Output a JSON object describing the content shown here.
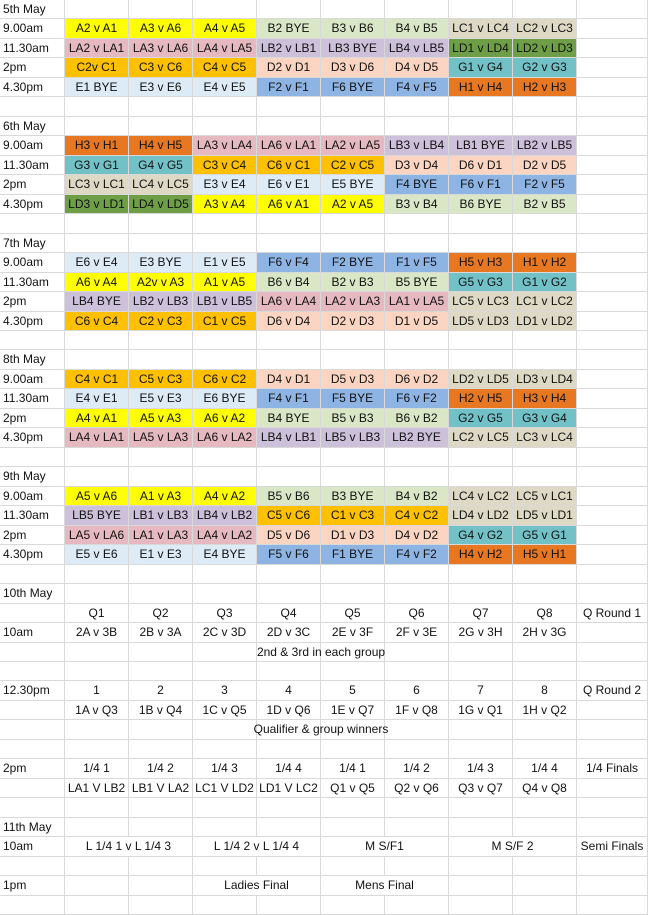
{
  "colors": {
    "A": "#FFFF00",
    "B": "#D9E7C7",
    "C": "#FFC000",
    "D": "#FBD5C1",
    "E": "#DDEBF7",
    "F": "#8EB4E3",
    "G": "#72C1C7",
    "H": "#E87722",
    "LA": "#E6B9C0",
    "LB": "#CCC0DA",
    "LC": "#DDD9C4",
    "LD": "#6E9F46"
  },
  "days": [
    {
      "label": "5th May",
      "rows": [
        {
          "time": "9.00am",
          "cells": [
            [
              "A2 v A1",
              "A"
            ],
            [
              "A3 v A6",
              "A"
            ],
            [
              "A4 v A5",
              "A"
            ],
            [
              "B2 BYE",
              "B"
            ],
            [
              "B3 v B6",
              "B"
            ],
            [
              "B4 v B5",
              "B"
            ],
            [
              "LC1 v LC4",
              "LC"
            ],
            [
              "LC2 v LC3",
              "LC"
            ]
          ]
        },
        {
          "time": "11.30am",
          "cells": [
            [
              "LA2 v LA1",
              "LA"
            ],
            [
              "LA3 v LA6",
              "LA"
            ],
            [
              "LA4 v LA5",
              "LA"
            ],
            [
              "LB2 v LB1",
              "LB"
            ],
            [
              "LB3 BYE",
              "LB"
            ],
            [
              "LB4 v LB5",
              "LB"
            ],
            [
              "LD1 v LD4",
              "LD"
            ],
            [
              "LD2 v LD3",
              "LD"
            ]
          ]
        },
        {
          "time": "2pm",
          "cells": [
            [
              "C2v C1",
              "C"
            ],
            [
              "C3 v C6",
              "C"
            ],
            [
              "C4 v C5",
              "C"
            ],
            [
              "D2 v D1",
              "D"
            ],
            [
              "D3 v D6",
              "D"
            ],
            [
              "D4 v D5",
              "D"
            ],
            [
              "G1 v G4",
              "G"
            ],
            [
              "G2 v G3",
              "G"
            ]
          ]
        },
        {
          "time": "4.30pm",
          "cells": [
            [
              "E1 BYE",
              "E"
            ],
            [
              "E3 v E6",
              "E"
            ],
            [
              "E4 v E5",
              "E"
            ],
            [
              "F2 v F1",
              "F"
            ],
            [
              "F6 BYE",
              "F"
            ],
            [
              "F4 v F5",
              "F"
            ],
            [
              "H1 v H4",
              "H"
            ],
            [
              "H2 v H3",
              "H"
            ]
          ]
        }
      ]
    },
    {
      "label": "6th May",
      "rows": [
        {
          "time": "9.00am",
          "cells": [
            [
              "H3 v H1",
              "H"
            ],
            [
              "H4 v H5",
              "H"
            ],
            [
              "LA3 v LA4",
              "LA"
            ],
            [
              "LA6 v LA1",
              "LA"
            ],
            [
              "LA2 v LA5",
              "LA"
            ],
            [
              "LB3 v LB4",
              "LB"
            ],
            [
              "LB1 BYE",
              "LB"
            ],
            [
              "LB2 v LB5",
              "LB"
            ]
          ]
        },
        {
          "time": "11.30am",
          "cells": [
            [
              "G3 v G1",
              "G"
            ],
            [
              "G4 v G5",
              "G"
            ],
            [
              "C3 v C4",
              "C"
            ],
            [
              "C6 v C1",
              "C"
            ],
            [
              "C2 v C5",
              "C"
            ],
            [
              "D3 v D4",
              "D"
            ],
            [
              "D6 v D1",
              "D"
            ],
            [
              "D2 v D5",
              "D"
            ]
          ]
        },
        {
          "time": "2pm",
          "cells": [
            [
              "LC3 v LC1",
              "LC"
            ],
            [
              "LC4 v LC5",
              "LC"
            ],
            [
              "E3 v E4",
              "E"
            ],
            [
              "E6 v E1",
              "E"
            ],
            [
              "E5 BYE",
              "E"
            ],
            [
              "F4 BYE",
              "F"
            ],
            [
              "F6 v F1",
              "F"
            ],
            [
              "F2 v F5",
              "F"
            ]
          ]
        },
        {
          "time": "4.30pm",
          "cells": [
            [
              "LD3 v LD1",
              "LD"
            ],
            [
              "LD4 v LD5",
              "LD"
            ],
            [
              "A3 v A4",
              "A"
            ],
            [
              "A6 v A1",
              "A"
            ],
            [
              "A2 v A5",
              "A"
            ],
            [
              "B3 v B4",
              "B"
            ],
            [
              "B6 BYE",
              "B"
            ],
            [
              "B2 v B5",
              "B"
            ]
          ]
        }
      ]
    },
    {
      "label": "7th May",
      "rows": [
        {
          "time": "9.00am",
          "cells": [
            [
              "E6 v E4",
              "E"
            ],
            [
              "E3 BYE",
              "E"
            ],
            [
              "E1 v E5",
              "E"
            ],
            [
              "F6 v F4",
              "F"
            ],
            [
              "F2 BYE",
              "F"
            ],
            [
              "F1 v F5",
              "F"
            ],
            [
              "H5 v H3",
              "H"
            ],
            [
              "H1 v H2",
              "H"
            ]
          ]
        },
        {
          "time": "11.30am",
          "cells": [
            [
              "A6 v A4",
              "A"
            ],
            [
              "A2v v A3",
              "A"
            ],
            [
              "A1 v A5",
              "A"
            ],
            [
              "B6 v B4",
              "B"
            ],
            [
              "B2 v B3",
              "B"
            ],
            [
              "B5 BYE",
              "B"
            ],
            [
              "G5 v G3",
              "G"
            ],
            [
              "G1 v G2",
              "G"
            ]
          ]
        },
        {
          "time": "2pm",
          "cells": [
            [
              "LB4 BYE",
              "LB"
            ],
            [
              "LB2 v LB3",
              "LB"
            ],
            [
              "LB1 v LB5",
              "LB"
            ],
            [
              "LA6 v LA4",
              "LA"
            ],
            [
              "LA2 v LA3",
              "LA"
            ],
            [
              "LA1 v LA5",
              "LA"
            ],
            [
              "LC5 v LC3",
              "LC"
            ],
            [
              "LC1 v LC2",
              "LC"
            ]
          ]
        },
        {
          "time": "4.30pm",
          "cells": [
            [
              "C6 v C4",
              "C"
            ],
            [
              "C2 v C3",
              "C"
            ],
            [
              "C1 v C5",
              "C"
            ],
            [
              "D6 v D4",
              "D"
            ],
            [
              "D2 v D3",
              "D"
            ],
            [
              "D1 v D5",
              "D"
            ],
            [
              "LD5 v LD3",
              "LC"
            ],
            [
              "LD1 v LD2",
              "LC"
            ]
          ]
        }
      ]
    },
    {
      "label": "8th May",
      "rows": [
        {
          "time": "9.00am",
          "cells": [
            [
              "C4 v C1",
              "C"
            ],
            [
              "C5 v C3",
              "C"
            ],
            [
              "C6 v C2",
              "C"
            ],
            [
              "D4 v D1",
              "D"
            ],
            [
              "D5 v D3",
              "D"
            ],
            [
              "D6 v D2",
              "D"
            ],
            [
              "LD2 v LD5",
              "LC"
            ],
            [
              "LD3 v LD4",
              "LC"
            ]
          ]
        },
        {
          "time": "11.30am",
          "cells": [
            [
              "E4 v E1",
              "E"
            ],
            [
              "E5 v E3",
              "E"
            ],
            [
              "E6 BYE",
              "E"
            ],
            [
              "F4 v F1",
              "F"
            ],
            [
              "F5 BYE",
              "F"
            ],
            [
              "F6 v F2",
              "F"
            ],
            [
              "H2 v H5",
              "H"
            ],
            [
              "H3 v H4",
              "H"
            ]
          ]
        },
        {
          "time": "2pm",
          "cells": [
            [
              "A4 v A1",
              "A"
            ],
            [
              "A5 v A3",
              "A"
            ],
            [
              "A6 v A2",
              "A"
            ],
            [
              "B4 BYE",
              "B"
            ],
            [
              "B5 v B3",
              "B"
            ],
            [
              "B6 v B2",
              "B"
            ],
            [
              "G2 v G5",
              "G"
            ],
            [
              "G3 v G4",
              "G"
            ]
          ]
        },
        {
          "time": "4.30pm",
          "cells": [
            [
              "LA4 v LA1",
              "LA"
            ],
            [
              "LA5 v LA3",
              "LA"
            ],
            [
              "LA6 v LA2",
              "LA"
            ],
            [
              "LB4 v LB1",
              "LB"
            ],
            [
              "LB5 v LB3",
              "LB"
            ],
            [
              "LB2 BYE",
              "LB"
            ],
            [
              "LC2 v LC5",
              "LC"
            ],
            [
              "LC3 v LC4",
              "LC"
            ]
          ]
        }
      ]
    },
    {
      "label": "9th May",
      "rows": [
        {
          "time": "9.00am",
          "cells": [
            [
              "A5 v A6",
              "A"
            ],
            [
              "A1 v A3",
              "A"
            ],
            [
              "A4 v A2",
              "A"
            ],
            [
              "B5 v B6",
              "B"
            ],
            [
              "B3 BYE",
              "B"
            ],
            [
              "B4 v B2",
              "B"
            ],
            [
              "LC4 v LC2",
              "LC"
            ],
            [
              "LC5 v LC1",
              "LC"
            ]
          ]
        },
        {
          "time": "11.30am",
          "cells": [
            [
              "LB5 BYE",
              "LB"
            ],
            [
              "LB1 v LB3",
              "LB"
            ],
            [
              "LB4 v LB2",
              "LB"
            ],
            [
              "C5 v C6",
              "C"
            ],
            [
              "C1 v C3",
              "C"
            ],
            [
              "C4 v C2",
              "C"
            ],
            [
              "LD4 v LD2",
              "LC"
            ],
            [
              "LD5 v LD1",
              "LC"
            ]
          ]
        },
        {
          "time": "2pm",
          "cells": [
            [
              "LA5 v LA6",
              "LA"
            ],
            [
              "LA1 v LA3",
              "LA"
            ],
            [
              "LA4 v LA2",
              "LA"
            ],
            [
              "D5 v D6",
              "D"
            ],
            [
              "D1 v D3",
              "D"
            ],
            [
              "D4 v D2",
              "D"
            ],
            [
              "G4 v G2",
              "G"
            ],
            [
              "G5 v G1",
              "G"
            ]
          ]
        },
        {
          "time": "4.30pm",
          "cells": [
            [
              "E5 v E6",
              "E"
            ],
            [
              "E1 v E3",
              "E"
            ],
            [
              "E4 BYE",
              "E"
            ],
            [
              "F5 v F6",
              "F"
            ],
            [
              "F1 BYE",
              "F"
            ],
            [
              "F4 v F2",
              "F"
            ],
            [
              "H4 v H2",
              "H"
            ],
            [
              "H5 v H1",
              "H"
            ]
          ]
        }
      ]
    }
  ],
  "finals": {
    "d10": "10th May",
    "q1_heads": [
      "Q1",
      "Q2",
      "Q3",
      "Q4",
      "Q5",
      "Q6",
      "Q7",
      "Q8"
    ],
    "q1_label": "Q Round 1",
    "q1_time": "10am",
    "q1_matches": [
      "2A v 3B",
      "2B v 3A",
      "2C v 3D",
      "2D v 3C",
      "2E v 3F",
      "2F v 3E",
      "2G v 3H",
      "2H v 3G"
    ],
    "q1_note": "2nd & 3rd in each group",
    "q2_time": "12.30pm",
    "q2_heads": [
      "1",
      "2",
      "3",
      "4",
      "5",
      "6",
      "7",
      "8"
    ],
    "q2_label": "Q Round 2",
    "q2_matches": [
      "1A v Q3",
      "1B v Q4",
      "1C v Q5",
      "1D v Q6",
      "1E v Q7",
      "1F v Q8",
      "1G v Q1",
      "1H v Q2"
    ],
    "q2_note": "Qualifier & group winners",
    "qf_time": "2pm",
    "qf_heads": [
      "1/4 1",
      "1/4 2",
      "1/4 3",
      "1/4 4",
      "1/4 1",
      "1/4 2",
      "1/4 3",
      "1/4 4"
    ],
    "qf_label": "1/4 Finals",
    "qf_matches": [
      "LA1 V LB2",
      "LB1 V LA2",
      "LC1 V LD2",
      "LD1 V LC2",
      "Q1 v Q5",
      "Q2 v Q6",
      "Q3 v Q7",
      "Q4 v Q8"
    ],
    "d11": "11th May",
    "sf_time": "10am",
    "sf_items": [
      "L 1/4 1 v L 1/4 3",
      "L 1/4 2 v L 1/4 4",
      "M S/F1",
      "M S/F 2"
    ],
    "sf_label": "Semi Finals",
    "f_time": "1pm",
    "f_items": [
      "Ladies Final",
      "Mens Final"
    ]
  }
}
